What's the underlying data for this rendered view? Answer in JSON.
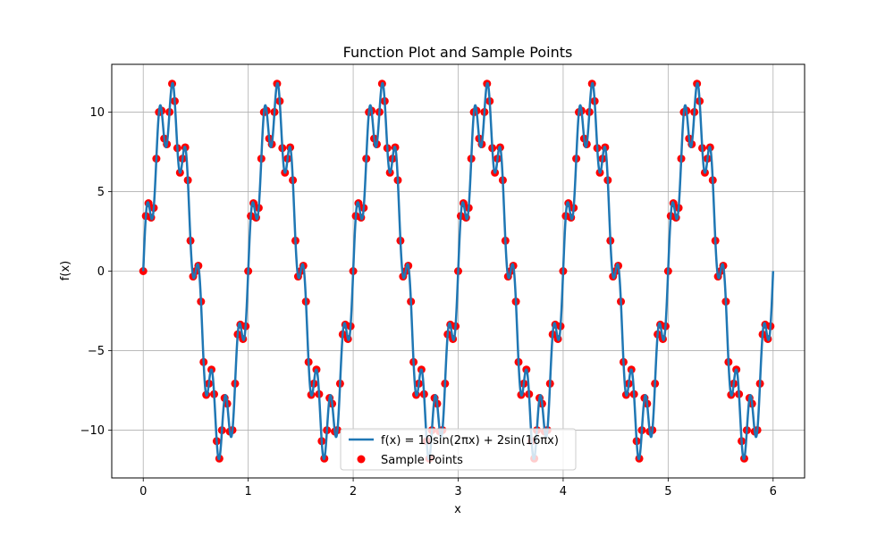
{
  "chart_data": {
    "type": "line",
    "title": "Function Plot and Sample Points",
    "xlabel": "x",
    "ylabel": "f(x)",
    "xlim": [
      -0.3,
      6.3
    ],
    "ylim": [
      -13,
      13
    ],
    "xticks": [
      0,
      1,
      2,
      3,
      4,
      5,
      6
    ],
    "xtick_labels": [
      "0",
      "1",
      "2",
      "3",
      "4",
      "5",
      "6"
    ],
    "yticks": [
      -10,
      -5,
      0,
      5,
      10
    ],
    "ytick_labels": [
      "−10",
      "−5",
      "0",
      "5",
      "10"
    ],
    "grid": true,
    "legend_position": "lower center",
    "series": [
      {
        "name": "f(x) = 10sin(2πx) + 2sin(16πx)",
        "kind": "line",
        "color": "#1f77b4",
        "function": "10*sin(2*pi*x) + 2*sin(16*pi*x)",
        "x_range": [
          0,
          6
        ]
      },
      {
        "name": "Sample Points",
        "kind": "scatter",
        "color": "#ff0000",
        "x_start": 0,
        "x_step": 0.025,
        "count": 240
      }
    ]
  }
}
